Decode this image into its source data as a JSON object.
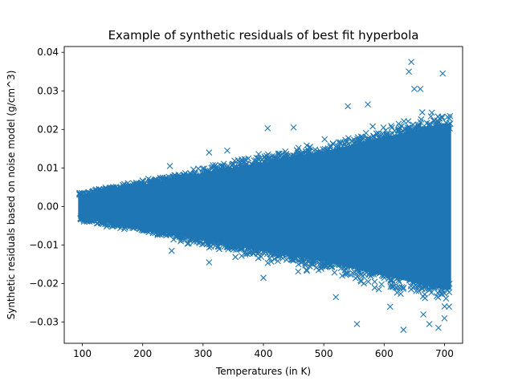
{
  "chart_data": {
    "type": "scatter",
    "title": "Example of synthetic residuals of best fit hyperbola",
    "xlabel": "Temperatures (in K)",
    "ylabel": "Synthetic residuals based on noise model (g/cm^3)",
    "xlim": [
      70,
      730
    ],
    "ylim": [
      -0.0355,
      0.0415
    ],
    "xticks": [
      100,
      200,
      300,
      400,
      500,
      600,
      700
    ],
    "yticks": [
      -0.03,
      -0.02,
      -0.01,
      0.0,
      0.01,
      0.02,
      0.03,
      0.04
    ],
    "xtick_labels": [
      "100",
      "200",
      "300",
      "400",
      "500",
      "600",
      "700"
    ],
    "ytick_labels": [
      "−0.03",
      "−0.02",
      "−0.01",
      "0.00",
      "0.01",
      "0.02",
      "0.03",
      "0.04"
    ],
    "grid": false,
    "marker": "x",
    "color": "#1f77b4",
    "x_range": [
      95,
      710
    ],
    "envelope_half_width": {
      "x": [
        100,
        200,
        300,
        400,
        500,
        600,
        700
      ],
      "y": [
        0.0035,
        0.0062,
        0.0095,
        0.0125,
        0.0155,
        0.0195,
        0.0235
      ]
    },
    "outliers": [
      {
        "x": 645,
        "y": 0.0375
      },
      {
        "x": 641,
        "y": 0.035
      },
      {
        "x": 697,
        "y": 0.0345
      },
      {
        "x": 650,
        "y": 0.0305
      },
      {
        "x": 660,
        "y": 0.0305
      },
      {
        "x": 540,
        "y": 0.026
      },
      {
        "x": 573,
        "y": 0.0265
      },
      {
        "x": 245,
        "y": 0.0105
      },
      {
        "x": 310,
        "y": 0.014
      },
      {
        "x": 407,
        "y": 0.0203
      },
      {
        "x": 450,
        "y": 0.0205
      },
      {
        "x": 340,
        "y": 0.0145
      },
      {
        "x": 555,
        "y": -0.0305
      },
      {
        "x": 632,
        "y": -0.032
      },
      {
        "x": 675,
        "y": -0.0305
      },
      {
        "x": 690,
        "y": -0.0315
      },
      {
        "x": 700,
        "y": -0.029
      },
      {
        "x": 310,
        "y": -0.0145
      },
      {
        "x": 248,
        "y": -0.0115
      },
      {
        "x": 400,
        "y": -0.0185
      },
      {
        "x": 520,
        "y": -0.0235
      },
      {
        "x": 610,
        "y": -0.026
      },
      {
        "x": 665,
        "y": -0.028
      }
    ]
  }
}
